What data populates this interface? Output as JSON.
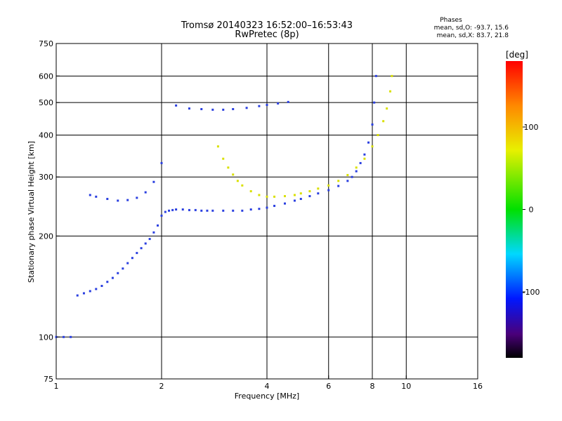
{
  "colors": {
    "background": "#ffffff",
    "axes": "#000000",
    "o_mode_trace": "#2a3fe0",
    "x_mode_trace": "#d9e000"
  },
  "chart_data": {
    "type": "scatter",
    "title": "Tromsø 20140323 16:52:00–16:53:43",
    "subtitle": "RwPretec (8p)",
    "stats": {
      "header": "Phases",
      "line_o": "mean, sd,O: -93.7, 15.6",
      "line_x": "mean, sd,X:  83.7, 21.8"
    },
    "xlabel": "Frequency [MHz]",
    "ylabel": "Stationary phase Virtual Height [km]",
    "x_scale": "log",
    "y_scale": "log",
    "xlim": [
      1,
      16
    ],
    "ylim": [
      75,
      750
    ],
    "x_ticks": [
      1,
      2,
      4,
      6,
      8,
      10,
      16
    ],
    "x_tick_labels": [
      "1",
      "2",
      "4",
      "6",
      "8",
      "10",
      "16"
    ],
    "y_ticks": [
      75,
      100,
      200,
      300,
      400,
      500,
      600,
      750
    ],
    "y_tick_labels": [
      "75",
      "100",
      "200",
      "300",
      "400",
      "500",
      "600",
      "750"
    ],
    "grid_x": [
      2,
      4,
      6,
      8,
      10
    ],
    "grid_y": [
      100,
      200,
      300,
      400,
      500,
      600
    ],
    "grid": true,
    "colorbar": {
      "label": "[deg]",
      "range": [
        -180,
        180
      ],
      "ticks": [
        100,
        0,
        -100
      ],
      "tick_labels": [
        "100",
        "0",
        "-100"
      ]
    },
    "series": [
      {
        "mode": "O",
        "color_value": -100,
        "color": "#2a3fe0",
        "x": [
          1.0,
          1.05,
          1.1,
          1.15,
          1.2,
          1.25,
          1.3,
          1.35,
          1.4,
          1.45,
          1.5,
          1.55,
          1.6,
          1.65,
          1.7,
          1.75,
          1.8,
          1.85,
          1.9,
          1.95,
          2.0,
          2.05,
          2.1,
          2.15,
          2.2,
          2.3,
          2.4,
          2.5,
          2.6,
          2.7,
          2.8,
          3.0,
          3.2,
          3.4,
          3.6,
          3.8,
          4.0,
          4.2,
          4.5,
          4.8,
          5.0,
          5.3,
          5.6,
          6.0,
          6.4,
          6.8,
          7.0,
          7.2,
          7.4,
          7.6,
          7.8,
          8.0,
          8.1,
          8.2
        ],
        "y": [
          100,
          100,
          100,
          133,
          135,
          137,
          139,
          142,
          146,
          150,
          155,
          160,
          166,
          172,
          178,
          184,
          190,
          196,
          205,
          215,
          230,
          236,
          238,
          239,
          240,
          240,
          239,
          239,
          238,
          238,
          238,
          238,
          238,
          238,
          240,
          241,
          243,
          246,
          250,
          255,
          258,
          263,
          268,
          274,
          282,
          292,
          300,
          312,
          330,
          350,
          380,
          430,
          500,
          600
        ]
      },
      {
        "mode": "O-F2-upper",
        "color_value": -100,
        "color": "#2a3fe0",
        "x": [
          1.25,
          1.3,
          1.4,
          1.5,
          1.6,
          1.7,
          1.8,
          1.9,
          2.0,
          2.2,
          2.4,
          2.6,
          2.8,
          3.0,
          3.2,
          3.5,
          3.8,
          4.0,
          4.3,
          4.6
        ],
        "y": [
          265,
          262,
          258,
          255,
          256,
          260,
          270,
          290,
          330,
          490,
          480,
          478,
          476,
          476,
          478,
          482,
          488,
          492,
          497,
          502
        ]
      },
      {
        "mode": "X",
        "color_value": 100,
        "color": "#d9e000",
        "x": [
          2.9,
          3.0,
          3.1,
          3.2,
          3.3,
          3.4,
          3.6,
          3.8,
          4.0,
          4.2,
          4.5,
          4.8,
          5.0,
          5.3,
          5.6,
          6.0,
          6.4,
          6.8,
          7.2,
          7.6,
          8.0,
          8.3,
          8.6,
          8.8,
          9.0,
          9.1
        ],
        "y": [
          370,
          340,
          320,
          305,
          292,
          283,
          272,
          265,
          262,
          262,
          263,
          265,
          268,
          272,
          277,
          283,
          292,
          304,
          320,
          340,
          370,
          400,
          440,
          480,
          540,
          600
        ]
      }
    ]
  }
}
